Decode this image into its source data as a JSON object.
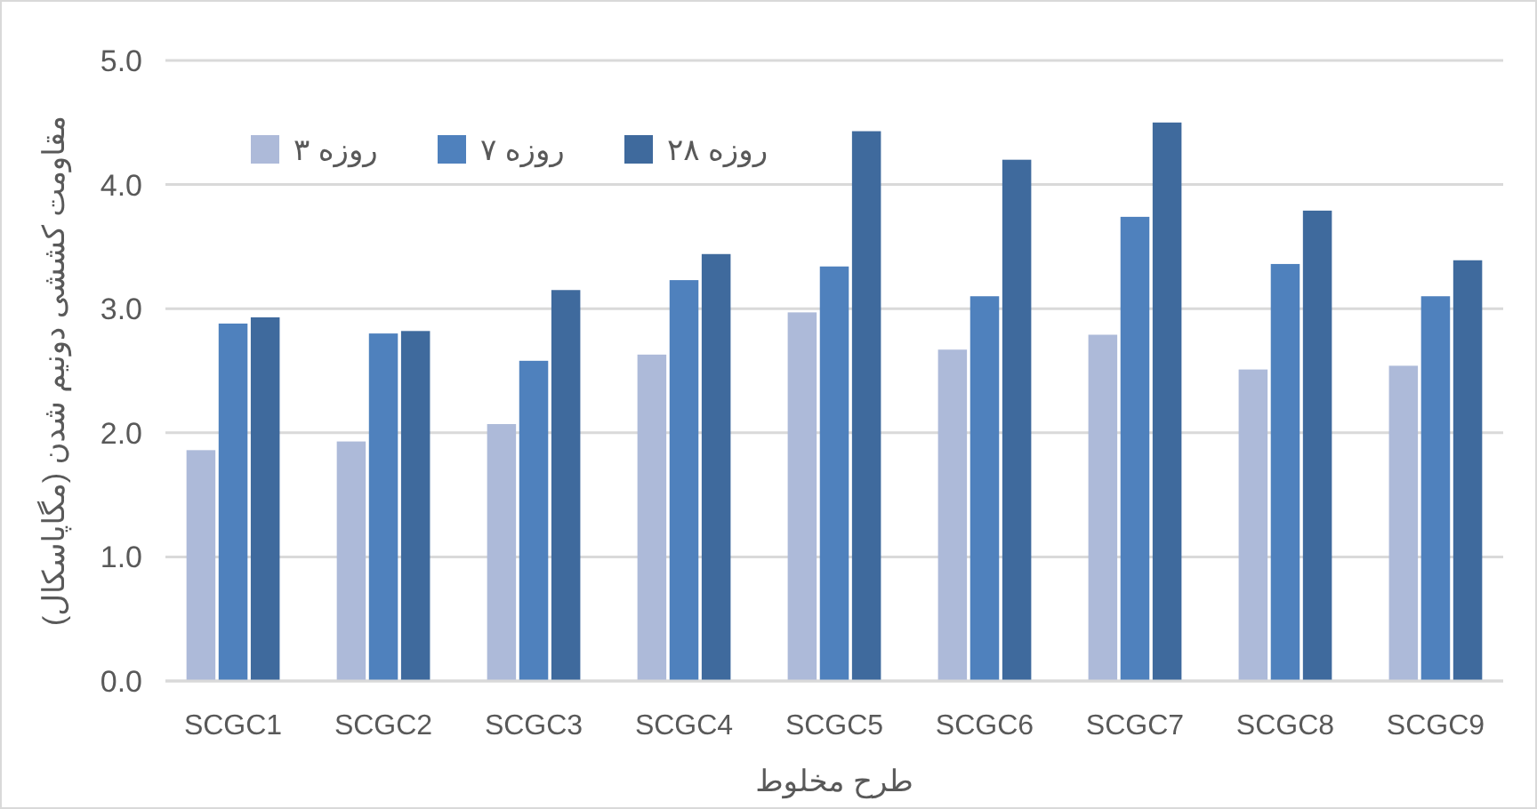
{
  "chart_data": {
    "type": "bar",
    "xlabel": "طرح مخلوط",
    "ylabel": "مقاومت کششی دونیم شدن (مگاپاسکال)",
    "categories": [
      "SCGC1",
      "SCGC2",
      "SCGC3",
      "SCGC4",
      "SCGC5",
      "SCGC6",
      "SCGC7",
      "SCGC8",
      "SCGC9"
    ],
    "series": [
      {
        "name": "۳ روزه",
        "color": "#adbad9",
        "values": [
          1.86,
          1.93,
          2.07,
          2.63,
          2.97,
          2.67,
          2.79,
          2.51,
          2.54
        ]
      },
      {
        "name": "۷ روزه",
        "color": "#4f81bd",
        "values": [
          2.88,
          2.8,
          2.58,
          3.23,
          3.34,
          3.1,
          3.74,
          3.36,
          3.1
        ]
      },
      {
        "name": "۲۸ روزه",
        "color": "#3f6a9d",
        "values": [
          2.93,
          2.82,
          3.15,
          3.44,
          4.43,
          4.2,
          4.5,
          3.79,
          3.39
        ]
      }
    ],
    "ylim": [
      0,
      5
    ],
    "yticks": [
      {
        "value": 0,
        "label": "0.0"
      },
      {
        "value": 1,
        "label": "1.0"
      },
      {
        "value": 2,
        "label": "2.0"
      },
      {
        "value": 3,
        "label": "3.0"
      },
      {
        "value": 4,
        "label": "4.0"
      },
      {
        "value": 5,
        "label": "5.0"
      }
    ],
    "grid": "y",
    "legend": "top left"
  }
}
